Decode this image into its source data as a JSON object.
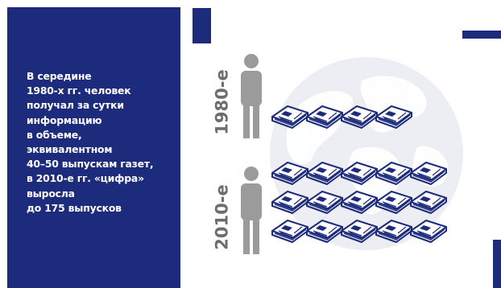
{
  "colors": {
    "navy": "#1c2b7b",
    "figure_gray": "#9b9b9b",
    "globe_gray": "#eceef3",
    "text_white": "#ffffff",
    "paper_outline": "#1c2b7b",
    "paper_fill": "#ffffff"
  },
  "info": {
    "lines": [
      "В середине",
      "1980-х гг. человек",
      "получал за сутки",
      "информацию",
      "в объеме,",
      "эквивалентном",
      "40–50 выпускам газет,",
      "в 2010-е гг. «цифра»",
      "выросла",
      "до 175 выпусков"
    ]
  },
  "groups": [
    {
      "decade": "1980-е",
      "newspaper_count": 4,
      "icon": "person-icon"
    },
    {
      "decade": "2010-е",
      "newspaper_count": 15,
      "icon": "person-icon"
    }
  ],
  "icons": {
    "newspaper": "newspaper-icon",
    "globe": "globe-icon"
  }
}
